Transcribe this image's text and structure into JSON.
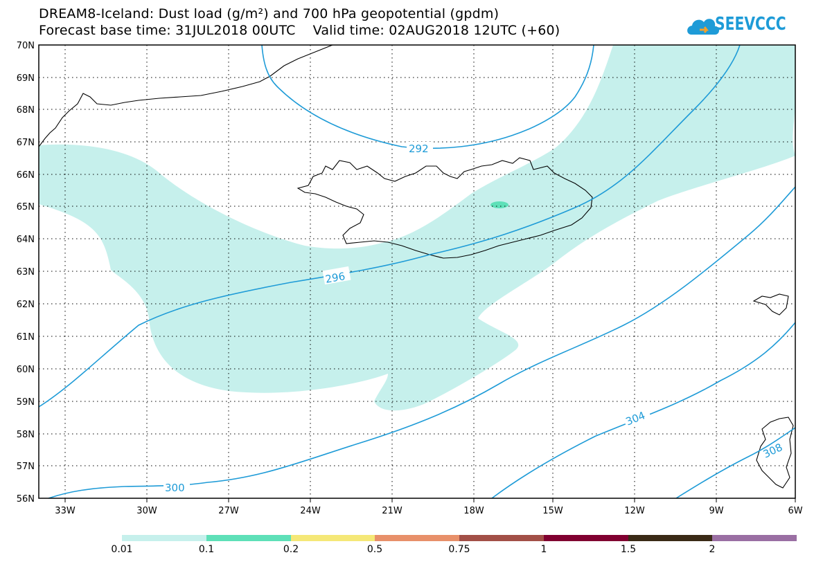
{
  "title": {
    "line1": "DREAM8-Iceland: Dust load (g/m²) and 700 hPa geopotential (gpdm)",
    "line2": "Forecast base time: 31JUL2018 00UTC    Valid time: 02AUG2018 12UTC (+60)"
  },
  "logo": {
    "text": "SEEVCCC",
    "icon": "cloud-logo-icon",
    "color": "#1e9bd7"
  },
  "map": {
    "lon_range": [
      -34.5,
      -6
    ],
    "lat_range": [
      56,
      70
    ],
    "lat_labels": [
      "70N",
      "69N",
      "68N",
      "67N",
      "66N",
      "65N",
      "64N",
      "63N",
      "62N",
      "61N",
      "60N",
      "59N",
      "58N",
      "57N",
      "56N"
    ],
    "lon_labels": [
      "33W",
      "30W",
      "27W",
      "24W",
      "21W",
      "18W",
      "15W",
      "12W",
      "9W",
      "6W"
    ],
    "contour_color": "#1e9bd7",
    "contour_labels": [
      "292",
      "296",
      "300",
      "304",
      "308"
    ],
    "dust_fill_colors": {
      "low": "#c6f0ec",
      "mid": "#5ee0b8"
    }
  },
  "colorbar": {
    "colors": [
      "#c6f0ec",
      "#5ee0b8",
      "#f5e877",
      "#e8906a",
      "#a24f47",
      "#800030",
      "#3a2a16",
      "#9a6fa3"
    ],
    "labels": [
      "0.01",
      "0.1",
      "0.2",
      "0.5",
      "0.75",
      "1",
      "1.5",
      "2"
    ]
  }
}
